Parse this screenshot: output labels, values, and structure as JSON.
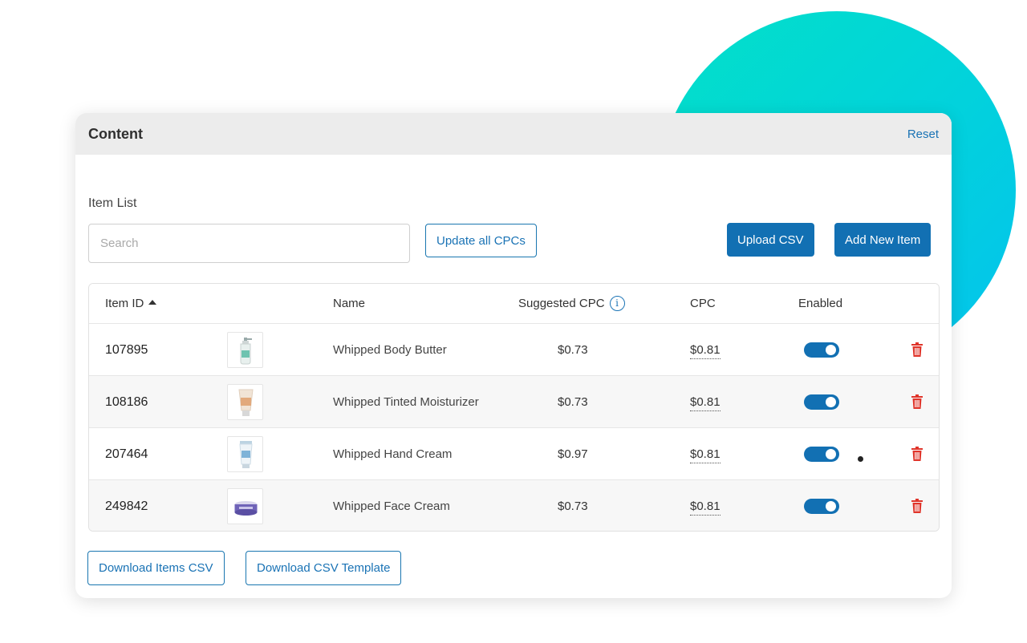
{
  "header": {
    "title": "Content",
    "reset_label": "Reset"
  },
  "item_list": {
    "label": "Item List",
    "search_placeholder": "Search",
    "update_cpcs_label": "Update all CPCs",
    "upload_csv_label": "Upload CSV",
    "add_item_label": "Add New Item"
  },
  "table": {
    "columns": {
      "item_id": "Item ID",
      "name": "Name",
      "suggested_cpc": "Suggested CPC",
      "cpc": "CPC",
      "enabled": "Enabled"
    },
    "info_icon_glyph": "i",
    "rows": [
      {
        "id": "107895",
        "name": "Whipped Body Butter",
        "suggested_cpc": "$0.73",
        "cpc": "$0.81",
        "enabled": true,
        "thumb_icon": "pump-bottle-icon"
      },
      {
        "id": "108186",
        "name": "Whipped Tinted Moisturizer",
        "suggested_cpc": "$0.73",
        "cpc": "$0.81",
        "enabled": true,
        "thumb_icon": "tinted-tube-icon"
      },
      {
        "id": "207464",
        "name": "Whipped Hand Cream",
        "suggested_cpc": "$0.97",
        "cpc": "$0.81",
        "enabled": true,
        "thumb_icon": "cream-tube-icon"
      },
      {
        "id": "249842",
        "name": "Whipped Face Cream",
        "suggested_cpc": "$0.73",
        "cpc": "$0.81",
        "enabled": true,
        "thumb_icon": "cream-jar-icon"
      }
    ]
  },
  "footer": {
    "download_items_label": "Download Items CSV",
    "download_template_label": "Download CSV Template"
  },
  "colors": {
    "accent": "#1270b3",
    "link": "#1a73b5",
    "delete": "#e0352b",
    "circle_start": "#03e0c8",
    "circle_end": "#04c2ee"
  }
}
